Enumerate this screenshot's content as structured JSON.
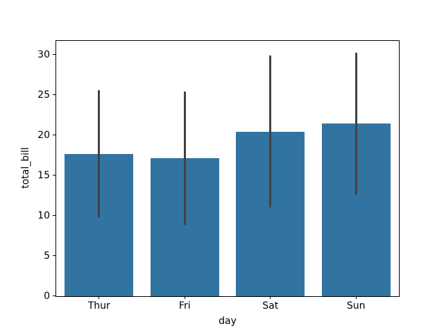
{
  "chart_data": {
    "type": "bar",
    "categories": [
      "Thur",
      "Fri",
      "Sat",
      "Sun"
    ],
    "values": [
      17.68,
      17.15,
      20.44,
      21.41
    ],
    "error_low": [
      9.8,
      8.85,
      10.96,
      12.58
    ],
    "error_high": [
      25.57,
      25.45,
      29.92,
      30.24
    ],
    "title": "",
    "xlabel": "day",
    "ylabel": "total_bill",
    "ylim": [
      0,
      31.75
    ],
    "yticks": [
      0,
      5,
      10,
      15,
      20,
      25,
      30
    ],
    "bar_color": "#3274a1",
    "errorbar_color": "#424242",
    "axis_color": "#000000",
    "background_color": "#ffffff",
    "grid": false,
    "legend": "none"
  }
}
